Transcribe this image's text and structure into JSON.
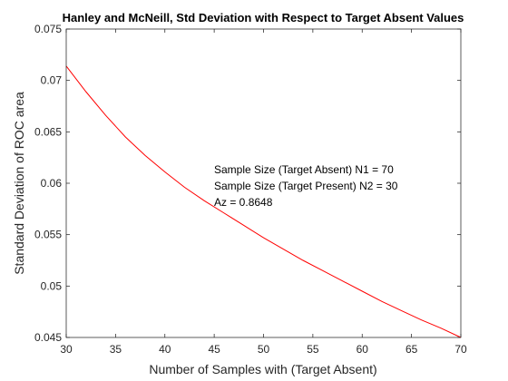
{
  "chart_data": {
    "type": "line",
    "title": "Hanley and McNeill, Std Deviation with Respect to Target Absent Values",
    "xlabel": "Number of Samples with (Target Absent)",
    "ylabel": "Standard Deviation of ROC area",
    "xlim": [
      30,
      70
    ],
    "ylim": [
      0.045,
      0.075
    ],
    "xticks": [
      30,
      35,
      40,
      45,
      50,
      55,
      60,
      65,
      70
    ],
    "yticks": [
      0.045,
      0.05,
      0.055,
      0.06,
      0.065,
      0.07,
      0.075
    ],
    "xtick_labels": [
      "30",
      "35",
      "40",
      "45",
      "50",
      "55",
      "60",
      "65",
      "70"
    ],
    "ytick_labels": [
      "0.045",
      "0.05",
      "0.055",
      "0.06",
      "0.065",
      "0.07",
      "0.075"
    ],
    "grid": false,
    "series": [
      {
        "color": "#ff0000",
        "x": [
          30,
          32,
          34,
          36,
          38,
          40,
          42,
          44,
          46,
          48,
          50,
          52,
          54,
          56,
          58,
          60,
          62,
          64,
          66,
          68,
          70
        ],
        "y": [
          0.0714,
          0.0689,
          0.0666,
          0.0645,
          0.0627,
          0.0611,
          0.0596,
          0.0583,
          0.0571,
          0.0559,
          0.0547,
          0.0536,
          0.0525,
          0.0515,
          0.0505,
          0.0495,
          0.0485,
          0.0476,
          0.0467,
          0.0459,
          0.045
        ]
      }
    ],
    "annotations": [
      "Sample Size (Target Absent) N1 = 70",
      "Sample Size (Target Present) N2 = 30",
      "Az = 0.8648"
    ]
  }
}
